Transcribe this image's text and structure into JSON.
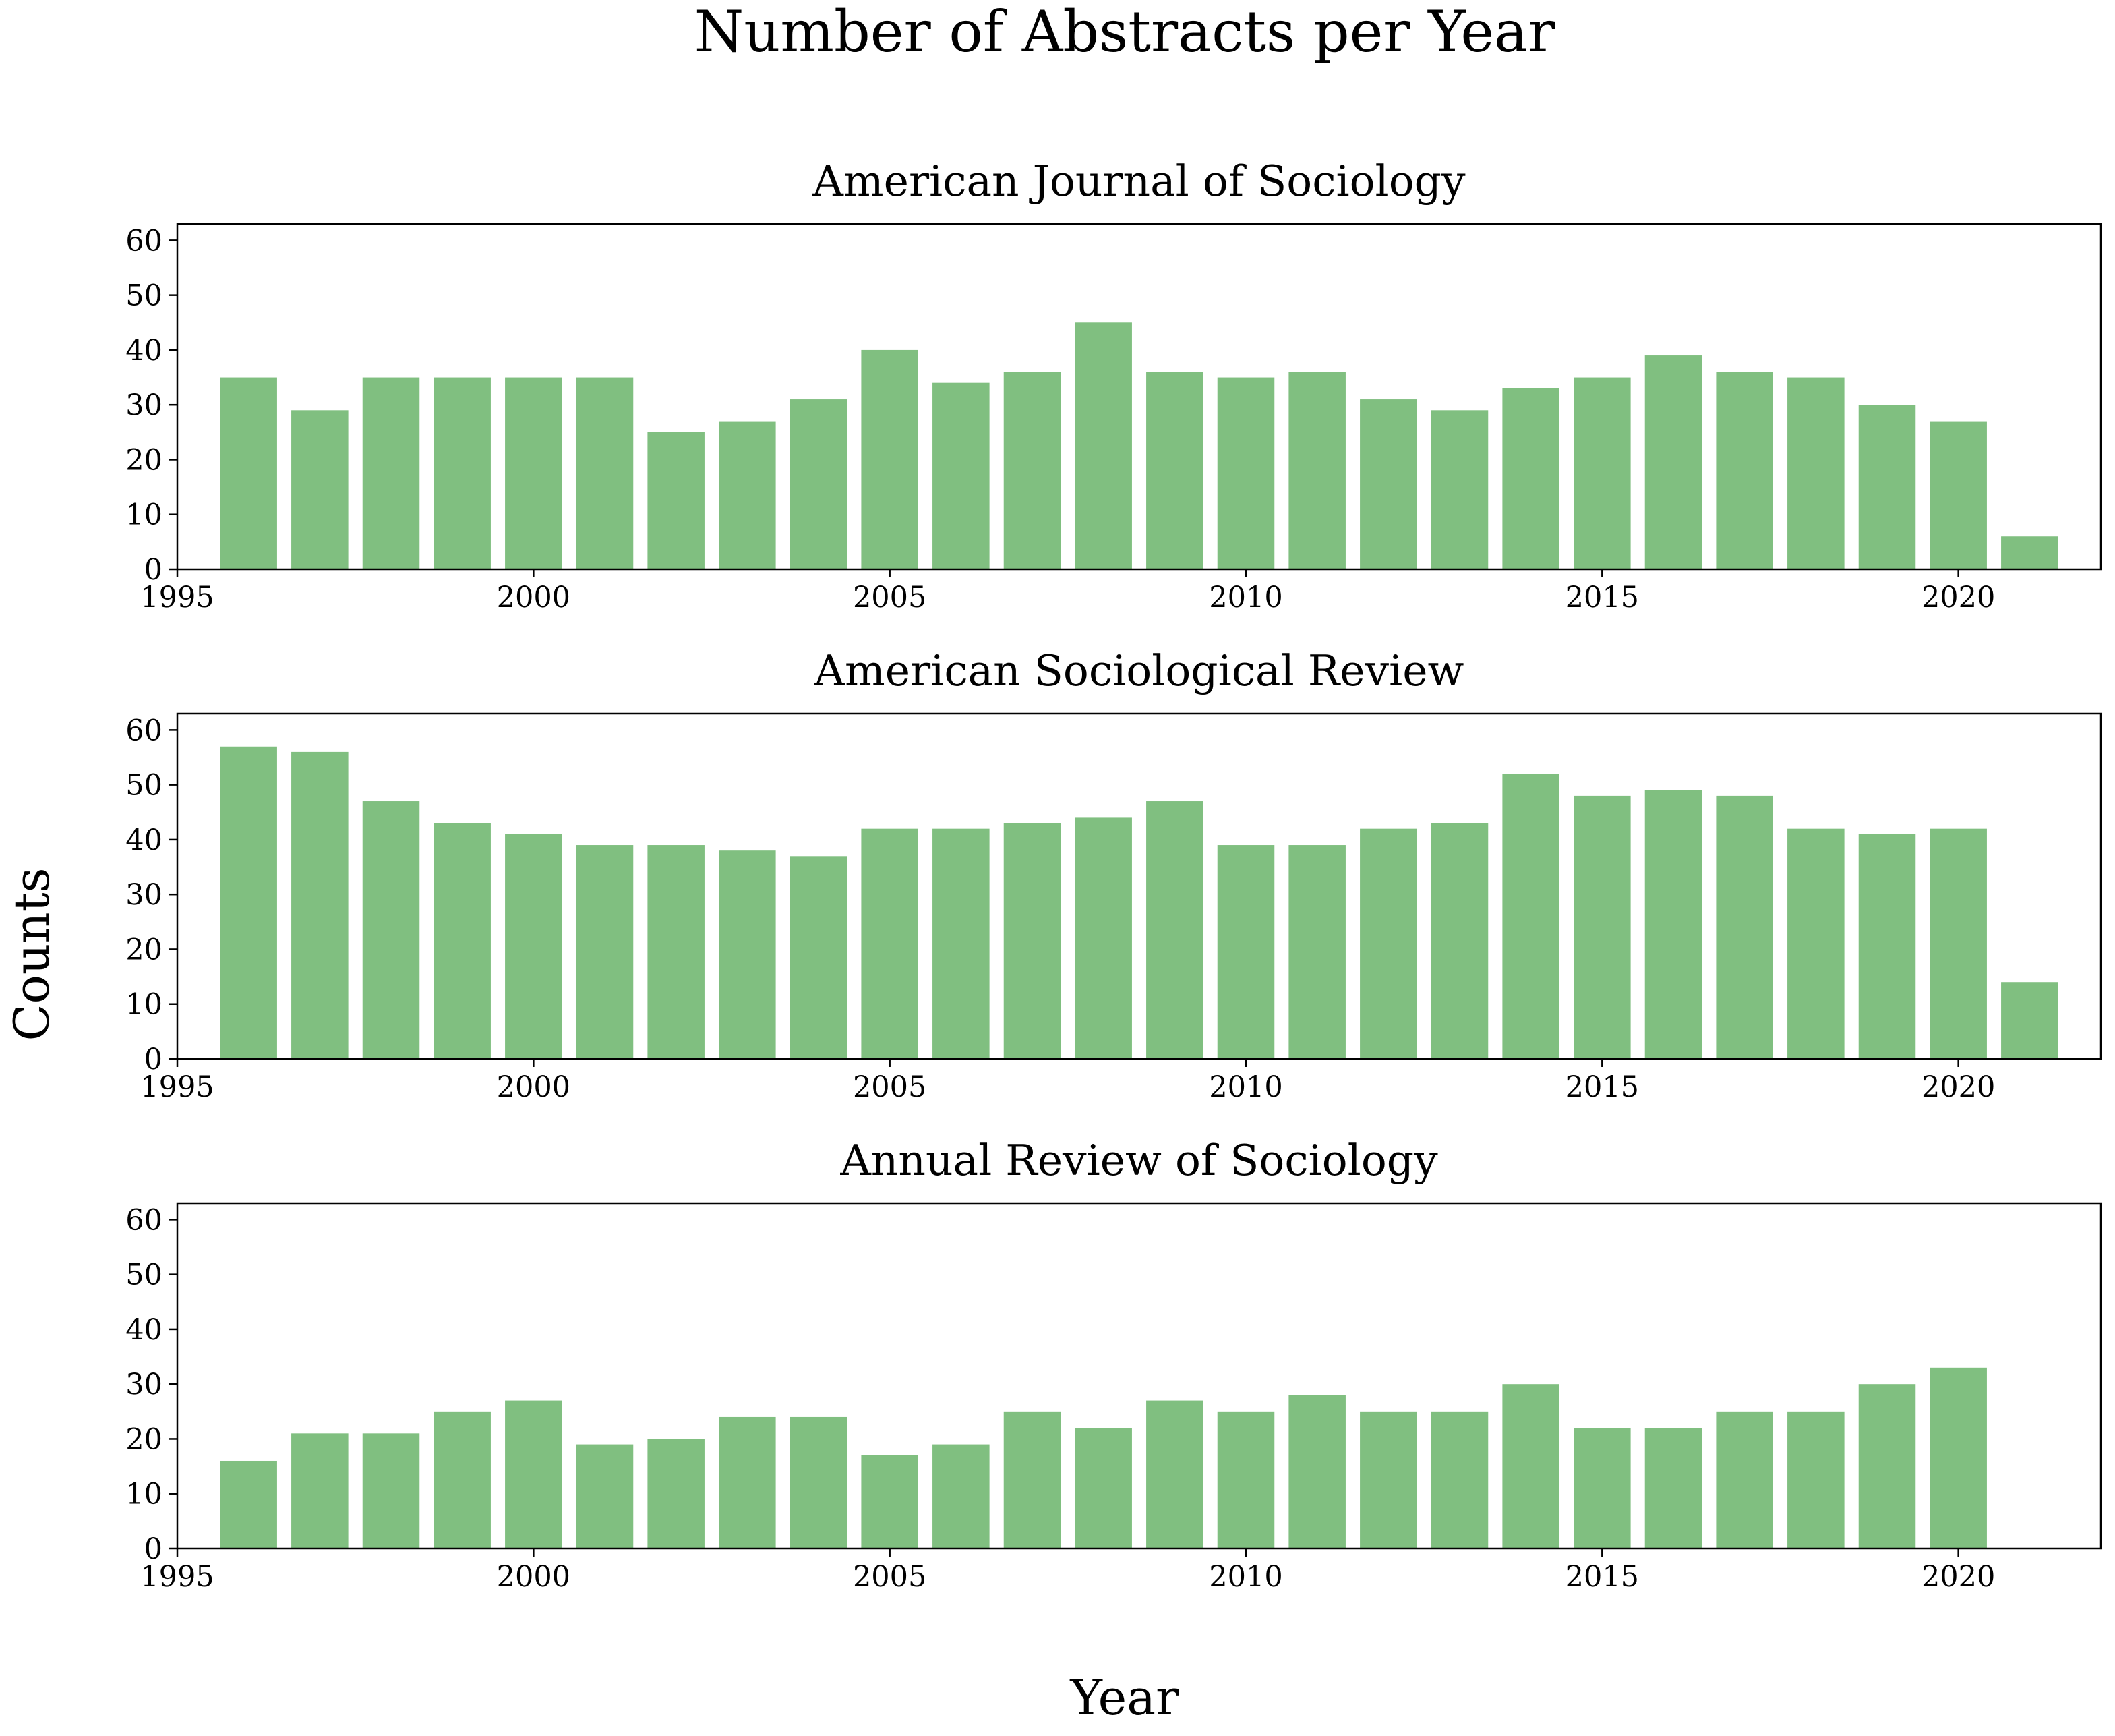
{
  "figure": {
    "title": "Number of Abstracts per Year",
    "xlabel": "Year",
    "ylabel": "Counts",
    "bar_color": "#80bf80"
  },
  "chart_data": [
    {
      "type": "bar",
      "title": "American Journal of Sociology",
      "x": [
        1996,
        1997,
        1998,
        1999,
        2000,
        2001,
        2002,
        2003,
        2004,
        2005,
        2006,
        2007,
        2008,
        2009,
        2010,
        2011,
        2012,
        2013,
        2014,
        2015,
        2016,
        2017,
        2018,
        2019,
        2020,
        2021
      ],
      "values": [
        35,
        29,
        35,
        35,
        35,
        35,
        25,
        27,
        31,
        40,
        34,
        36,
        45,
        36,
        35,
        36,
        31,
        29,
        33,
        35,
        39,
        36,
        35,
        30,
        27,
        6
      ],
      "xlim": [
        1995,
        2022
      ],
      "ylim": [
        0,
        63
      ],
      "xticks": [
        "1995",
        "2000",
        "2005",
        "2010",
        "2015",
        "2020"
      ],
      "yticks": [
        "0",
        "10",
        "20",
        "30",
        "40",
        "50",
        "60"
      ],
      "grid": false,
      "legend": false
    },
    {
      "type": "bar",
      "title": "American Sociological Review",
      "x": [
        1996,
        1997,
        1998,
        1999,
        2000,
        2001,
        2002,
        2003,
        2004,
        2005,
        2006,
        2007,
        2008,
        2009,
        2010,
        2011,
        2012,
        2013,
        2014,
        2015,
        2016,
        2017,
        2018,
        2019,
        2020,
        2021
      ],
      "values": [
        57,
        56,
        47,
        43,
        41,
        39,
        39,
        38,
        37,
        42,
        42,
        43,
        44,
        47,
        39,
        39,
        42,
        43,
        52,
        48,
        49,
        48,
        42,
        41,
        42,
        14
      ],
      "xlim": [
        1995,
        2022
      ],
      "ylim": [
        0,
        63
      ],
      "xticks": [
        "1995",
        "2000",
        "2005",
        "2010",
        "2015",
        "2020"
      ],
      "yticks": [
        "0",
        "10",
        "20",
        "30",
        "40",
        "50",
        "60"
      ],
      "grid": false,
      "legend": false
    },
    {
      "type": "bar",
      "title": "Annual Review of Sociology",
      "x": [
        1996,
        1997,
        1998,
        1999,
        2000,
        2001,
        2002,
        2003,
        2004,
        2005,
        2006,
        2007,
        2008,
        2009,
        2010,
        2011,
        2012,
        2013,
        2014,
        2015,
        2016,
        2017,
        2018,
        2019,
        2020
      ],
      "values": [
        16,
        21,
        21,
        25,
        27,
        19,
        20,
        24,
        24,
        17,
        19,
        25,
        22,
        27,
        25,
        28,
        25,
        25,
        30,
        22,
        22,
        25,
        25,
        30,
        33
      ],
      "xlim": [
        1995,
        2022
      ],
      "ylim": [
        0,
        63
      ],
      "xticks": [
        "1995",
        "2000",
        "2005",
        "2010",
        "2015",
        "2020"
      ],
      "yticks": [
        "0",
        "10",
        "20",
        "30",
        "40",
        "50",
        "60"
      ],
      "grid": false,
      "legend": false
    }
  ]
}
